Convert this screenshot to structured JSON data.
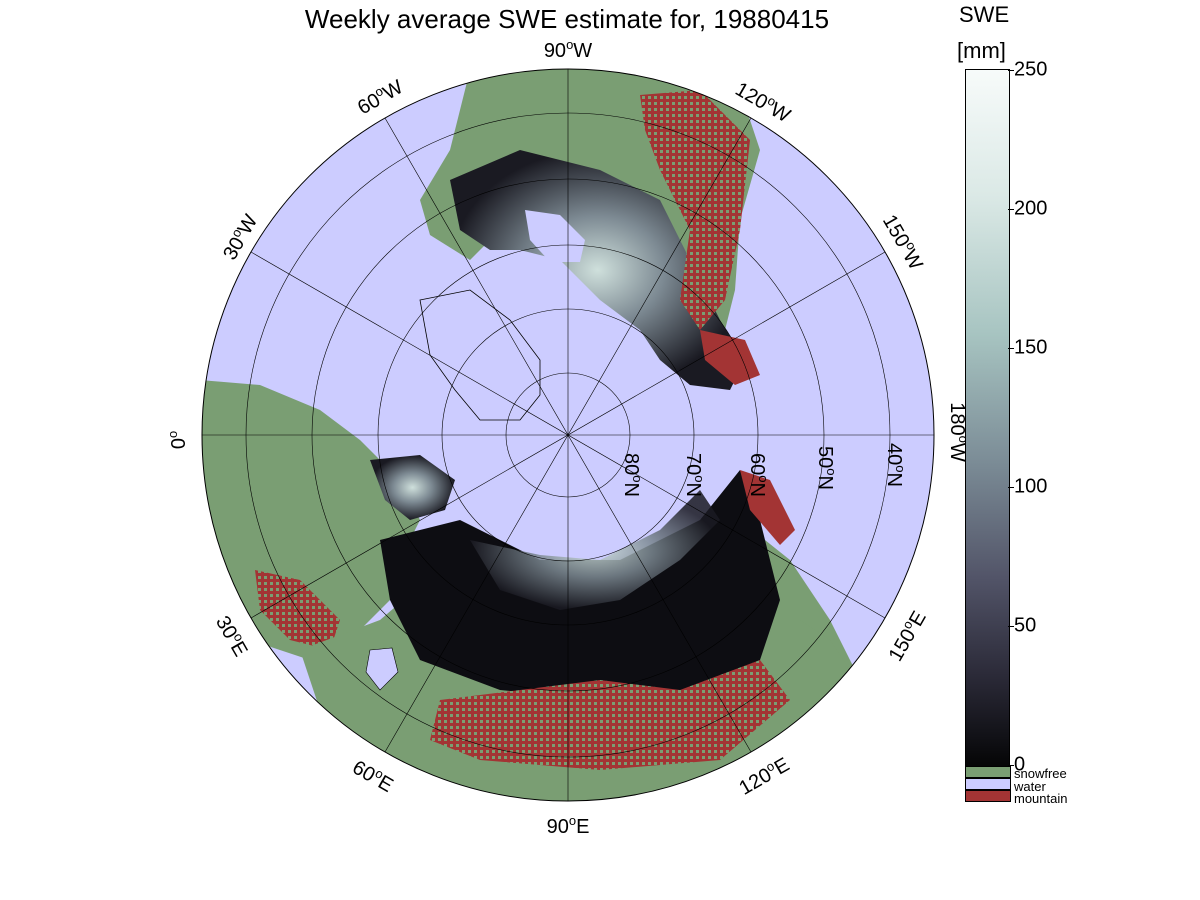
{
  "map": {
    "title": "Weekly average SWE estimate for, 19880415",
    "projection": "north-polar stereographic",
    "lon_labels": [
      {
        "text": "90",
        "suffix": "W",
        "lon": -90
      },
      {
        "text": "60",
        "suffix": "W",
        "lon": -60
      },
      {
        "text": "30",
        "suffix": "W",
        "lon": -30
      },
      {
        "text": "0",
        "suffix": "",
        "lon": 0
      },
      {
        "text": "30",
        "suffix": "E",
        "lon": 30
      },
      {
        "text": "60",
        "suffix": "E",
        "lon": 60
      },
      {
        "text": "90",
        "suffix": "E",
        "lon": 90
      },
      {
        "text": "120",
        "suffix": "E",
        "lon": 120
      },
      {
        "text": "150",
        "suffix": "E",
        "lon": 150
      },
      {
        "text": "180",
        "suffix": "W",
        "lon": 180
      },
      {
        "text": "150",
        "suffix": "W",
        "lon": -150
      },
      {
        "text": "120",
        "suffix": "W",
        "lon": -120
      }
    ],
    "lat_labels": [
      {
        "text": "80",
        "suffix": "N",
        "lat": 80
      },
      {
        "text": "70",
        "suffix": "N",
        "lat": 70
      },
      {
        "text": "60",
        "suffix": "N",
        "lat": 60
      },
      {
        "text": "50",
        "suffix": "N",
        "lat": 50
      },
      {
        "text": "40",
        "suffix": "N",
        "lat": 40
      }
    ],
    "colors": {
      "water": "#ccccff",
      "snowfree": "#7a9e73",
      "mountain": "#a33434",
      "swe_low": "#0a0a0d",
      "swe_high": "#f5faf8"
    }
  },
  "colorbar": {
    "unit_line1": "SWE",
    "unit_line2": "[mm]",
    "ticks": [
      {
        "label": "250",
        "value": 250
      },
      {
        "label": "200",
        "value": 200
      },
      {
        "label": "150",
        "value": 150
      },
      {
        "label": "100",
        "value": 100
      },
      {
        "label": "50",
        "value": 50
      },
      {
        "label": "0",
        "value": 0
      }
    ],
    "range": [
      0,
      250
    ]
  },
  "legend": [
    {
      "label": "snowfree",
      "color": "#7a9e73"
    },
    {
      "label": "water",
      "color": "#ccccff"
    },
    {
      "label": "mountain",
      "color": "#a33434"
    }
  ]
}
